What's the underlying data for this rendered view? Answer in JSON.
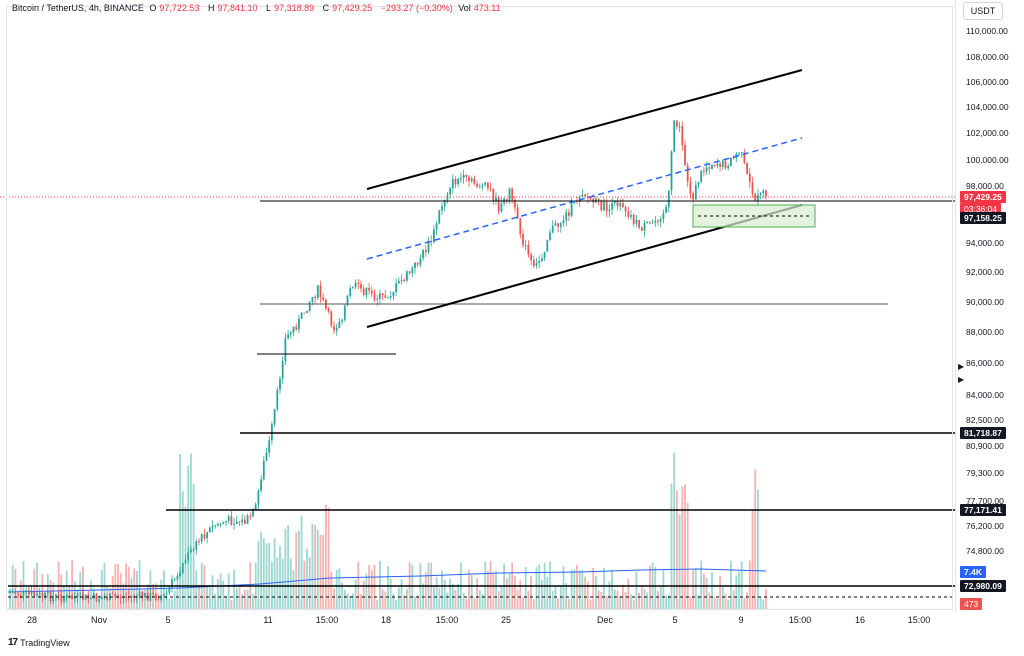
{
  "legend": {
    "symbol": "Bitcoin / TetherUS, 4h, BINANCE",
    "open_key": "O",
    "open": "97,722.53",
    "high_key": "H",
    "high": "97,841.10",
    "low_key": "L",
    "low": "97,318.89",
    "close_key": "C",
    "close": "97,429.25",
    "change": "−293.27 (−0.30%)",
    "vol_key": "Vol",
    "vol": "473.11"
  },
  "currency_button": "USDT",
  "price_axis": [
    "110,000.00",
    "108,000.00",
    "106,000.00",
    "104,000.00",
    "102,000.00",
    "100,000.00",
    "98,000.00",
    "94,000.00",
    "92,000.00",
    "90,000.00",
    "88,000.00",
    "86,000.00",
    "84,000.00",
    "82,500.00",
    "80,900.00",
    "79,300.00",
    "77,700.00",
    "76,200.00",
    "74,800.00"
  ],
  "badges": {
    "last_price": "97,429.25",
    "countdown": "03:36:04",
    "zone_mid": "97,158.25",
    "level_1": "81,718.87",
    "level_2": "77,171.41",
    "volume_ma": "7.4K",
    "level_3": "72,980.09",
    "volume": "473"
  },
  "time_axis": [
    "28",
    "Nov",
    "5",
    "11",
    "15:00",
    "18",
    "15:00",
    "25",
    "Dec",
    "5",
    "9",
    "15:00",
    "16",
    "15:00"
  ],
  "brand": {
    "logo": "17",
    "name": "TradingView"
  },
  "colors": {
    "up": "#26a69a",
    "down": "#ef5350",
    "blue": "#2962ff",
    "zone_fill": "#d6ecd2",
    "zone_stroke": "#4caf50",
    "black": "#000000"
  }
}
